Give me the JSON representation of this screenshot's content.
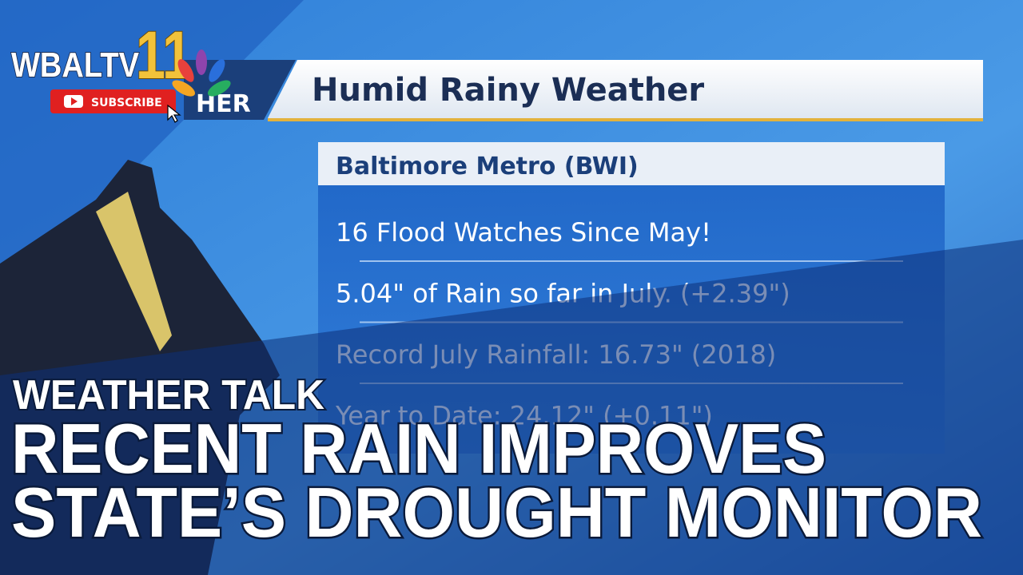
{
  "logo": {
    "station": "WBALTV",
    "channel": "11",
    "subscribe": "SUBSCRIBE"
  },
  "banner": {
    "tag": "HER",
    "title": "Humid Rainy Weather"
  },
  "panel": {
    "header": "Baltimore Metro (BWI)",
    "lines": [
      "16 Flood Watches Since May!",
      "5.04\" of Rain so far in July. (+2.39\")",
      "Record July Rainfall: 16.73\" (2018)",
      "Year to Date: 24.12\" (+0.11\")"
    ]
  },
  "headline": {
    "kicker": "WEATHER TALK",
    "lines": [
      "RECENT RAIN IMPROVES",
      "STATE’S DROUGHT MONITOR"
    ]
  }
}
